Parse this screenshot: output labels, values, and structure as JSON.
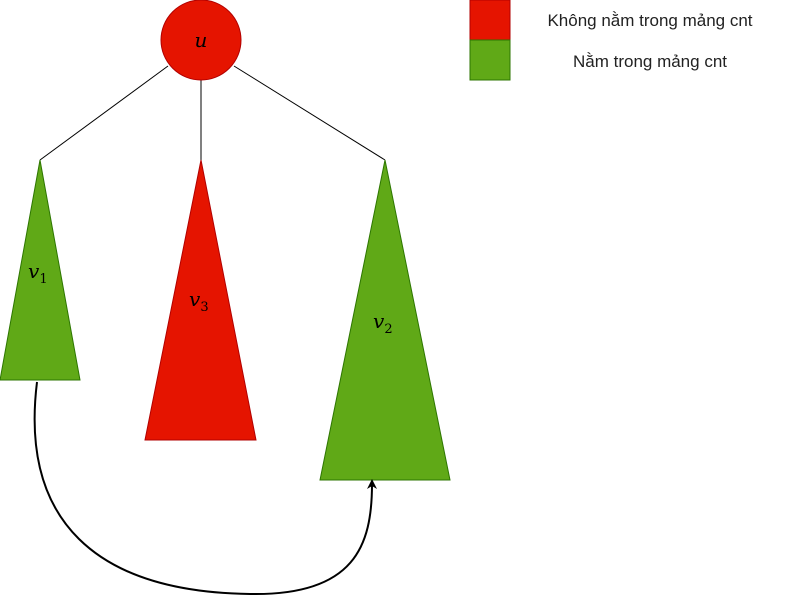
{
  "diagram": {
    "root": {
      "label": "u",
      "color": "#e51400"
    },
    "subtrees": [
      {
        "id": "v1",
        "label": "v",
        "subscript": "1",
        "color": "#60a917"
      },
      {
        "id": "v3",
        "label": "v",
        "subscript": "3",
        "color": "#e51400"
      },
      {
        "id": "v2",
        "label": "v",
        "subscript": "2",
        "color": "#60a917"
      }
    ],
    "arrow": {
      "from": "v1",
      "to": "v2"
    }
  },
  "legend": {
    "items": [
      {
        "label": "Không nằm trong mảng cnt",
        "color": "#e51400"
      },
      {
        "label": "Nằm trong mảng cnt",
        "color": "#60a917"
      }
    ]
  }
}
